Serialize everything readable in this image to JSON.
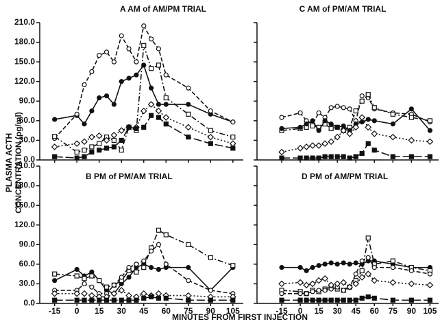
{
  "y_label": [
    "PLASMA ACTH",
    "CONCENTRATION (pg/ml)"
  ],
  "x_label": "MINUTES FROM FIRST INJECTION",
  "chart_data": [
    {
      "type": "line",
      "title": "A  AM of AM/PM TRIAL",
      "xlim": [
        -25,
        112
      ],
      "ylim": [
        0,
        210
      ],
      "xticks": [
        -15,
        0,
        15,
        30,
        45,
        60,
        75,
        90,
        105
      ],
      "yticks": [
        {
          "value": 0,
          "label": "0.0"
        },
        {
          "value": 30,
          "label": "30.0"
        },
        {
          "value": 60,
          "label": "60.0"
        },
        {
          "value": 90,
          "label": "90.0"
        },
        {
          "value": 120,
          "label": "120.0"
        },
        {
          "value": 150,
          "label": "150.0"
        },
        {
          "value": 180,
          "label": "180.0"
        },
        {
          "value": 210,
          "label": "210.0"
        }
      ],
      "x": [
        -15,
        0,
        5,
        10,
        15,
        20,
        25,
        30,
        35,
        40,
        45,
        50,
        55,
        60,
        75,
        90,
        105
      ],
      "series": [
        {
          "marker": "filled-circle",
          "dash": "solid",
          "color": "#111",
          "values": [
            62,
            68,
            55,
            75,
            95,
            98,
            85,
            120,
            125,
            130,
            145,
            110,
            85,
            85,
            85,
            70,
            58
          ]
        },
        {
          "marker": "open-circle",
          "dash": "dashed",
          "color": "#111",
          "values": [
            33,
            70,
            115,
            135,
            160,
            165,
            150,
            190,
            170,
            150,
            205,
            185,
            170,
            130,
            110,
            75,
            58
          ]
        },
        {
          "marker": "open-square",
          "dash": "dash-dot",
          "color": "#111",
          "values": [
            36,
            12,
            15,
            20,
            25,
            35,
            30,
            15,
            50,
            45,
            175,
            140,
            145,
            95,
            70,
            45,
            35
          ]
        },
        {
          "marker": "open-diamond",
          "dash": "dotted",
          "color": "#111",
          "values": [
            20,
            25,
            28,
            35,
            37,
            30,
            38,
            45,
            50,
            50,
            75,
            85,
            75,
            65,
            50,
            35,
            25
          ]
        },
        {
          "marker": "filled-square",
          "dash": "long-dash",
          "color": "#111",
          "values": [
            5,
            3,
            5,
            12,
            15,
            18,
            20,
            30,
            50,
            48,
            50,
            68,
            65,
            55,
            35,
            25,
            18
          ]
        }
      ]
    },
    {
      "type": "line",
      "title": "C  AM of PM/AM TRIAL",
      "xlim": [
        -35,
        112
      ],
      "ylim": [
        0,
        210
      ],
      "xticks": [
        -15,
        0,
        15,
        30,
        45,
        60,
        75,
        90,
        105
      ],
      "yticks": [
        0,
        30,
        60,
        90,
        120,
        150,
        180,
        210
      ],
      "x": [
        -15,
        0,
        5,
        10,
        15,
        20,
        25,
        30,
        35,
        40,
        45,
        50,
        55,
        60,
        75,
        90,
        105
      ],
      "series": [
        {
          "marker": "open-circle",
          "dash": "dashed",
          "color": "#111",
          "values": [
            65,
            72,
            60,
            55,
            72,
            65,
            80,
            82,
            80,
            78,
            60,
            98,
            95,
            78,
            72,
            70,
            58
          ]
        },
        {
          "marker": "open-square",
          "dash": "dash-dot",
          "color": "#111",
          "values": [
            45,
            48,
            50,
            52,
            50,
            55,
            48,
            50,
            45,
            50,
            75,
            90,
            100,
            80,
            70,
            65,
            60
          ]
        },
        {
          "marker": "filled-circle",
          "dash": "solid",
          "color": "#111",
          "values": [
            48,
            50,
            55,
            60,
            45,
            60,
            55,
            50,
            52,
            45,
            55,
            58,
            62,
            60,
            55,
            78,
            45
          ]
        },
        {
          "marker": "open-diamond",
          "dash": "dotted",
          "color": "#111",
          "values": [
            12,
            18,
            20,
            22,
            22,
            25,
            28,
            35,
            45,
            40,
            50,
            65,
            50,
            40,
            35,
            30,
            28
          ]
        },
        {
          "marker": "filled-square",
          "dash": "long-dash",
          "color": "#111",
          "values": [
            3,
            3,
            3,
            3,
            3,
            5,
            5,
            5,
            5,
            3,
            5,
            10,
            25,
            15,
            5,
            5,
            5
          ]
        }
      ]
    },
    {
      "type": "line",
      "title": "B  PM of PM/AM TRIAL",
      "xlim": [
        -25,
        112
      ],
      "ylim": [
        0,
        210
      ],
      "xticks": [
        -15,
        0,
        15,
        30,
        45,
        60,
        75,
        90,
        105
      ],
      "yticks": [
        {
          "value": 0,
          "label": "0.0"
        },
        {
          "value": 30,
          "label": "30.0"
        },
        {
          "value": 60,
          "label": "60.0"
        },
        {
          "value": 90,
          "label": "90.0"
        },
        {
          "value": 120,
          "label": "120.0"
        },
        {
          "value": 150,
          "label": "150.0"
        },
        {
          "value": 180,
          "label": "180.0"
        },
        {
          "value": 210,
          "label": "210.0"
        }
      ],
      "x": [
        -15,
        0,
        5,
        10,
        15,
        20,
        25,
        30,
        35,
        40,
        45,
        50,
        55,
        60,
        75,
        90,
        105
      ],
      "series": [
        {
          "marker": "filled-circle",
          "dash": "solid",
          "color": "#111",
          "values": [
            35,
            52,
            42,
            48,
            35,
            20,
            15,
            30,
            40,
            55,
            60,
            55,
            52,
            55,
            55,
            20,
            55
          ]
        },
        {
          "marker": "open-square",
          "dash": "dash-dot",
          "color": "#111",
          "values": [
            45,
            42,
            38,
            42,
            35,
            25,
            28,
            35,
            50,
            48,
            55,
            85,
            112,
            105,
            90,
            70,
            58
          ]
        },
        {
          "marker": "open-circle",
          "dash": "dashed",
          "color": "#111",
          "values": [
            20,
            20,
            30,
            25,
            15,
            15,
            28,
            40,
            55,
            60,
            65,
            80,
            90,
            60,
            35,
            20,
            15
          ]
        },
        {
          "marker": "open-diamond",
          "dash": "dotted",
          "color": "#111",
          "values": [
            15,
            15,
            15,
            12,
            10,
            10,
            15,
            20,
            12,
            10,
            15,
            12,
            15,
            12,
            12,
            10,
            10
          ]
        },
        {
          "marker": "filled-square",
          "dash": "long-dash",
          "color": "#111",
          "values": [
            5,
            5,
            5,
            5,
            5,
            5,
            5,
            5,
            5,
            5,
            8,
            10,
            8,
            8,
            5,
            5,
            5
          ]
        }
      ]
    },
    {
      "type": "line",
      "title": "D  PM of AM/PM TRIAL",
      "xlim": [
        -35,
        112
      ],
      "ylim": [
        0,
        210
      ],
      "xticks": [
        -15,
        0,
        15,
        30,
        45,
        60,
        75,
        90,
        105
      ],
      "yticks": [
        0,
        30,
        60,
        90,
        120,
        150,
        180,
        210
      ],
      "x": [
        -15,
        0,
        5,
        10,
        15,
        20,
        25,
        30,
        35,
        40,
        45,
        50,
        55,
        60,
        75,
        90,
        105
      ],
      "series": [
        {
          "marker": "filled-circle",
          "dash": "solid",
          "color": "#111",
          "values": [
            55,
            55,
            50,
            55,
            58,
            60,
            62,
            60,
            62,
            60,
            62,
            60,
            65,
            65,
            60,
            55,
            55
          ]
        },
        {
          "marker": "open-square",
          "dash": "dash-dot",
          "color": "#111",
          "values": [
            20,
            18,
            15,
            20,
            18,
            22,
            25,
            22,
            20,
            25,
            35,
            50,
            100,
            60,
            65,
            55,
            50
          ]
        },
        {
          "marker": "open-circle",
          "dash": "dashed",
          "color": "#111",
          "values": [
            15,
            15,
            15,
            18,
            20,
            20,
            22,
            25,
            20,
            25,
            45,
            65,
            70,
            55,
            55,
            50,
            45
          ]
        },
        {
          "marker": "open-diamond",
          "dash": "dotted",
          "color": "#111",
          "values": [
            30,
            32,
            28,
            30,
            35,
            38,
            28,
            30,
            32,
            25,
            30,
            40,
            45,
            35,
            32,
            30,
            28
          ]
        },
        {
          "marker": "filled-square",
          "dash": "long-dash",
          "color": "#111",
          "values": [
            5,
            5,
            5,
            5,
            5,
            5,
            5,
            5,
            5,
            5,
            5,
            8,
            10,
            8,
            5,
            5,
            5
          ]
        }
      ]
    }
  ]
}
